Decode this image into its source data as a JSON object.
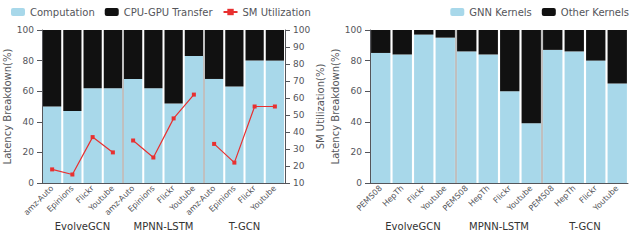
{
  "chart_data": [
    {
      "type": "bar",
      "stacked": true,
      "grid": false,
      "legend": "upper left",
      "ylabel": "Latency Breakdown(%)",
      "y2label": "SM Utilization(%)",
      "categories": [
        "amz-Auto",
        "Epinions",
        "Flickr",
        "Youtube",
        "amz-Auto",
        "Epinions",
        "Flickr",
        "Youtube",
        "amz-Auto",
        "Epinions",
        "Flickr",
        "Youtube"
      ],
      "annotations": [
        "EvolveGCN",
        "MPNN-LSTM",
        "T-GCN"
      ],
      "ylim": [
        0,
        100
      ],
      "yticks": [
        0,
        20,
        40,
        60,
        80,
        100
      ],
      "y2lim": [
        10,
        100
      ],
      "y2ticks": [
        10,
        20,
        30,
        40,
        50,
        60,
        70,
        80,
        90,
        100
      ],
      "series": [
        {
          "name": "Computation",
          "color": "#a8d8ea",
          "values": [
            50,
            47,
            62,
            62,
            68,
            62,
            52,
            83,
            68,
            63,
            80,
            80
          ]
        },
        {
          "name": "CPU-GPU Transfer",
          "color": "#111111",
          "values": [
            50,
            53,
            38,
            38,
            32,
            38,
            48,
            17,
            32,
            37,
            20,
            20
          ]
        },
        {
          "name": "SM Utilization",
          "type": "line",
          "axis": "y2",
          "color": "#e83030",
          "marker": "square",
          "values": [
            18,
            15,
            37,
            28,
            35,
            25,
            48,
            62,
            33,
            22,
            55,
            55
          ]
        }
      ]
    },
    {
      "type": "bar",
      "stacked": true,
      "grid": false,
      "legend": "upper right",
      "ylabel": "Latency Breakdown(%)",
      "categories": [
        "PEMS08",
        "HepTh",
        "Flickr",
        "Youtube",
        "PEMS08",
        "HepTh",
        "Flickr",
        "Youtube",
        "PEMS08",
        "HepTh",
        "Flickr",
        "Youtube"
      ],
      "annotations": [
        "EvolveGCN",
        "MPNN-LSTM",
        "T-GCN"
      ],
      "ylim": [
        0,
        100
      ],
      "yticks": [
        0,
        20,
        40,
        60,
        80,
        100
      ],
      "series": [
        {
          "name": "GNN Kernels",
          "color": "#a8d8ea",
          "values": [
            85,
            84,
            97,
            95,
            86,
            84,
            60,
            39,
            87,
            86,
            80,
            65
          ]
        },
        {
          "name": "Other Kernels",
          "color": "#111111",
          "values": [
            15,
            16,
            3,
            5,
            14,
            16,
            40,
            61,
            13,
            14,
            20,
            35
          ]
        }
      ]
    }
  ]
}
